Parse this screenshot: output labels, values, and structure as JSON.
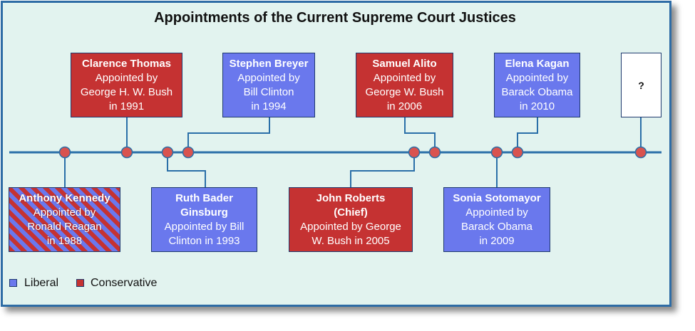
{
  "title": "Appointments of the Current Supreme Court Justices",
  "colors": {
    "liberal": "#6a78ed",
    "conservative": "#c53232",
    "dot": "#d9534f",
    "line": "#2a6fa8"
  },
  "justices": [
    {
      "name": "Clarence Thomas",
      "lines": [
        "Appointed by",
        "George H. W. Bush",
        "in 1991"
      ],
      "ideology": "conservative"
    },
    {
      "name": "Stephen Breyer",
      "lines": [
        "Appointed by",
        "Bill Clinton",
        "in 1994"
      ],
      "ideology": "liberal"
    },
    {
      "name": "Samuel Alito",
      "lines": [
        "Appointed by",
        "George W. Bush",
        "in 2006"
      ],
      "ideology": "conservative"
    },
    {
      "name": "Elena Kagan",
      "lines": [
        "Appointed by",
        "Barack Obama",
        "in 2010"
      ],
      "ideology": "liberal"
    },
    {
      "name": "?",
      "lines": [],
      "ideology": "unknown"
    },
    {
      "name": "Anthony Kennedy",
      "lines": [
        "Appointed by",
        "Ronald Reagan",
        "in 1988"
      ],
      "ideology": "mixed"
    },
    {
      "name": "Ruth Bader Ginsburg",
      "lines": [
        "Appointed by Bill",
        "Clinton in 1993"
      ],
      "ideology": "liberal"
    },
    {
      "name": "John Roberts (Chief)",
      "lines": [
        "Appointed by George",
        "W. Bush in 2005"
      ],
      "ideology": "conservative"
    },
    {
      "name": "Sonia Sotomayor",
      "lines": [
        "Appointed by",
        "Barack Obama",
        "in 2009"
      ],
      "ideology": "liberal"
    }
  ],
  "legend": [
    {
      "label": "Liberal",
      "ideology": "liberal"
    },
    {
      "label": "Conservative",
      "ideology": "conservative"
    }
  ]
}
